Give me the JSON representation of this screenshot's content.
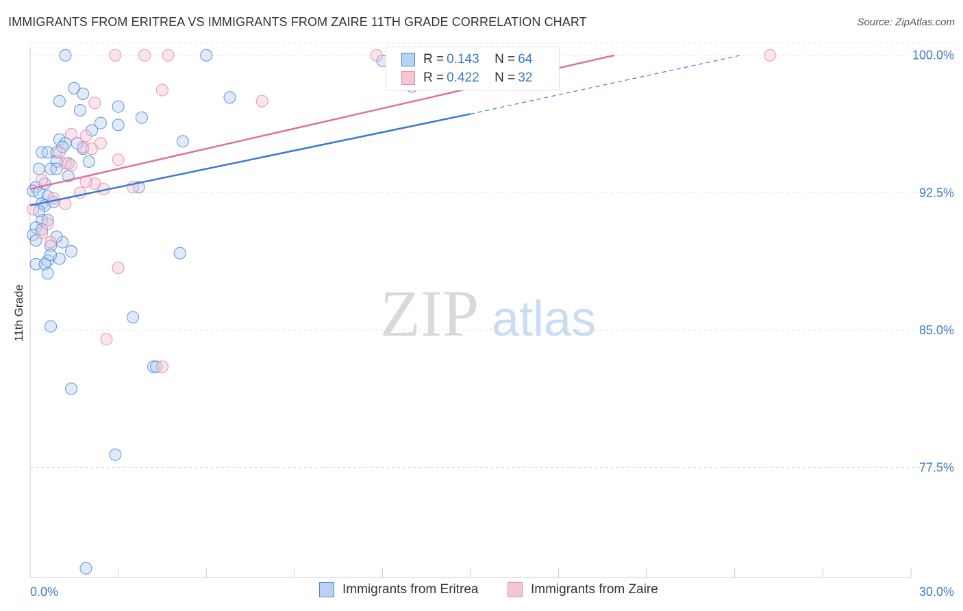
{
  "title": "IMMIGRANTS FROM ERITREA VS IMMIGRANTS FROM ZAIRE 11TH GRADE CORRELATION CHART",
  "source": "Source: ZipAtlas.com",
  "watermark": {
    "zip": "ZIP",
    "atlas": "atlas"
  },
  "legend": {
    "rows": [
      {
        "r_label": "R = ",
        "r_value": "0.143",
        "n_label": "N = ",
        "n_value": "64"
      },
      {
        "r_label": "R = ",
        "r_value": "0.422",
        "n_label": "N = ",
        "n_value": "32"
      }
    ]
  },
  "colors": {
    "blue_fill": "#b8d2f4",
    "blue_stroke": "#4f86d4",
    "blue_line": "#3a78d0",
    "pink_fill": "#f7c6d6",
    "pink_stroke": "#e58aa8",
    "pink_line": "#e0709a",
    "axis_text": "#3a78c9",
    "grid": "#e3e3e3"
  },
  "chart_data": {
    "type": "scatter",
    "title": "IMMIGRANTS FROM ERITREA VS IMMIGRANTS FROM ZAIRE 11TH GRADE CORRELATION CHART",
    "xlabel": "",
    "ylabel": "11th Grade",
    "xlim": [
      0,
      30
    ],
    "ylim": [
      71.5,
      100.7
    ],
    "x_tick_labels": [
      "0.0%",
      "30.0%"
    ],
    "y_ticks": [
      77.5,
      85.0,
      92.5,
      100.0
    ],
    "y_tick_labels": [
      "77.5%",
      "85.0%",
      "92.5%",
      "100.0%"
    ],
    "grid": true,
    "legend_position": "bottom",
    "series": [
      {
        "name": "Immigrants from Eritrea",
        "trend": {
          "x": [
            0,
            15.0
          ],
          "y": [
            91.8,
            96.8
          ],
          "dashed_to": [
            24.2,
            100.0
          ]
        },
        "points": [
          [
            1.2,
            100.0
          ],
          [
            6.0,
            100.0
          ],
          [
            1.5,
            98.2
          ],
          [
            1.8,
            97.9
          ],
          [
            1.0,
            97.5
          ],
          [
            6.8,
            97.7
          ],
          [
            3.0,
            97.2
          ],
          [
            1.7,
            97.0
          ],
          [
            3.8,
            96.6
          ],
          [
            2.4,
            96.3
          ],
          [
            3.0,
            96.2
          ],
          [
            2.1,
            95.9
          ],
          [
            1.0,
            95.4
          ],
          [
            1.2,
            95.2
          ],
          [
            5.2,
            95.3
          ],
          [
            1.8,
            94.9
          ],
          [
            0.4,
            94.7
          ],
          [
            0.6,
            94.7
          ],
          [
            0.9,
            94.7
          ],
          [
            1.3,
            94.1
          ],
          [
            0.9,
            94.2
          ],
          [
            0.3,
            93.8
          ],
          [
            0.7,
            93.8
          ],
          [
            0.9,
            93.8
          ],
          [
            1.3,
            93.4
          ],
          [
            3.7,
            92.8
          ],
          [
            0.2,
            92.8
          ],
          [
            0.1,
            92.6
          ],
          [
            0.3,
            92.5
          ],
          [
            0.6,
            92.3
          ],
          [
            0.4,
            91.9
          ],
          [
            0.5,
            91.8
          ],
          [
            0.4,
            91.0
          ],
          [
            0.6,
            91.0
          ],
          [
            0.2,
            90.6
          ],
          [
            0.1,
            90.2
          ],
          [
            0.2,
            89.9
          ],
          [
            1.1,
            89.8
          ],
          [
            0.7,
            89.6
          ],
          [
            1.4,
            89.3
          ],
          [
            5.1,
            89.2
          ],
          [
            1.0,
            88.9
          ],
          [
            0.6,
            88.8
          ],
          [
            0.2,
            88.6
          ],
          [
            0.5,
            88.6
          ],
          [
            0.6,
            88.1
          ],
          [
            3.5,
            85.7
          ],
          [
            0.7,
            85.2
          ],
          [
            4.2,
            83.0
          ],
          [
            4.3,
            83.0
          ],
          [
            1.4,
            81.8
          ],
          [
            2.9,
            78.2
          ],
          [
            1.9,
            72.0
          ],
          [
            13.0,
            98.3
          ],
          [
            12.0,
            99.7
          ],
          [
            1.6,
            95.2
          ],
          [
            0.8,
            92.0
          ],
          [
            0.4,
            90.5
          ],
          [
            0.7,
            89.1
          ],
          [
            2.0,
            94.2
          ],
          [
            0.5,
            93.0
          ],
          [
            0.3,
            91.5
          ],
          [
            1.1,
            95.0
          ],
          [
            0.9,
            90.1
          ]
        ]
      },
      {
        "name": "Immigrants from Zaire",
        "trend": {
          "x": [
            0,
            19.9
          ],
          "y": [
            92.7,
            100.0
          ]
        },
        "points": [
          [
            2.9,
            100.0
          ],
          [
            3.9,
            100.0
          ],
          [
            4.7,
            100.0
          ],
          [
            11.8,
            100.0
          ],
          [
            25.2,
            100.0
          ],
          [
            4.5,
            98.1
          ],
          [
            7.9,
            97.5
          ],
          [
            2.2,
            97.4
          ],
          [
            1.4,
            95.7
          ],
          [
            1.9,
            95.6
          ],
          [
            2.4,
            95.2
          ],
          [
            1.8,
            95.0
          ],
          [
            2.1,
            94.9
          ],
          [
            1.0,
            94.7
          ],
          [
            3.0,
            94.3
          ],
          [
            1.2,
            94.1
          ],
          [
            1.4,
            94.0
          ],
          [
            0.4,
            93.2
          ],
          [
            2.2,
            93.0
          ],
          [
            1.9,
            93.1
          ],
          [
            2.5,
            92.7
          ],
          [
            3.5,
            92.8
          ],
          [
            1.7,
            92.5
          ],
          [
            0.8,
            92.2
          ],
          [
            1.2,
            91.9
          ],
          [
            0.1,
            91.6
          ],
          [
            0.6,
            90.8
          ],
          [
            0.4,
            90.3
          ],
          [
            0.7,
            89.8
          ],
          [
            3.0,
            88.4
          ],
          [
            2.6,
            84.5
          ],
          [
            4.5,
            83.0
          ]
        ]
      }
    ]
  },
  "bottom_legend": [
    "Immigrants from Eritrea",
    "Immigrants from Zaire"
  ]
}
